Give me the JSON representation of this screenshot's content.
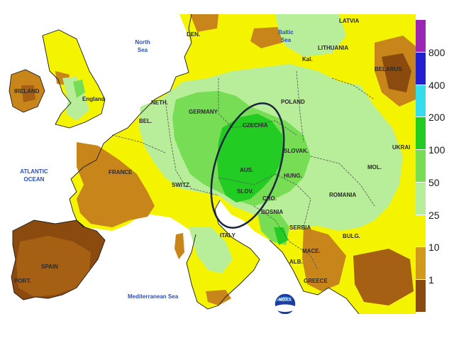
{
  "map": {
    "seas": {
      "north_sea": "North Sea",
      "baltic_sea": "Baltic Sea",
      "atlantic_ocean": "ATLANTIC OCEAN",
      "mediterranean": "Mediterranean Sea"
    },
    "countries": {
      "ireland": "IRELAND",
      "england": "England",
      "den": "DEN.",
      "neth": "NETH.",
      "bel": "BEL.",
      "germany": "GERMANY",
      "france": "FRANCE",
      "switz": "SWITZ.",
      "czechia": "CZECHIA",
      "aus": "AUS.",
      "slov_si": "SLOV.",
      "slovak": "SLOVAK.",
      "poland": "POLAND",
      "latvia": "LATVIA",
      "lithuania": "LITHUANIA",
      "kal": "Kal.",
      "belarus": "BELARUS",
      "ukraine": "UKRAI",
      "hung": "HUNG.",
      "romania": "ROMANIA",
      "mol": "MOL.",
      "cro": "CRO.",
      "bosnia": "BOSNIA",
      "serbia": "SERBIA",
      "bulg": "BULG.",
      "mace": "MACE.",
      "alb": "ALB.",
      "greece": "GREECE",
      "italy": "ITALY",
      "spain": "SPAIN",
      "port": "PORT."
    },
    "logo": "NOAA"
  },
  "legend": {
    "labels": [
      "800",
      "400",
      "200",
      "100",
      "50",
      "25",
      "10",
      "1"
    ],
    "colors": [
      "#9b26b6",
      "#2020d0",
      "#33ddee",
      "#22cc22",
      "#77dd55",
      "#b8ee99",
      "#f4f400",
      "#d19a1a",
      "#8b4a0e"
    ]
  },
  "colors": {
    "water": "#ffffff",
    "outline": "#1a1a1a",
    "dark_brown": "#8b4a0e",
    "brown": "#c8861a",
    "yellow": "#f4f400",
    "light_green": "#b8ee99",
    "green": "#77dd55",
    "bright_green": "#22cc22"
  }
}
